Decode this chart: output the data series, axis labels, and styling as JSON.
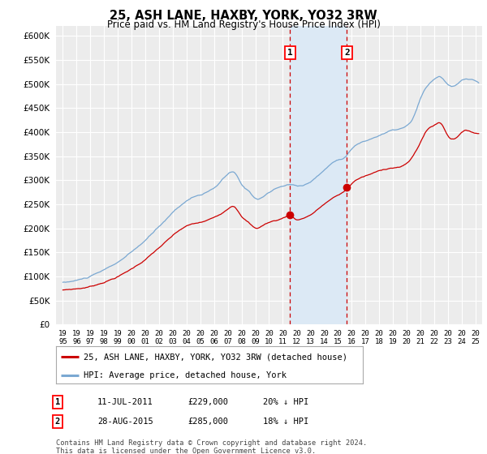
{
  "title": "25, ASH LANE, HAXBY, YORK, YO32 3RW",
  "subtitle": "Price paid vs. HM Land Registry's House Price Index (HPI)",
  "ylim": [
    0,
    620000
  ],
  "yticks": [
    0,
    50000,
    100000,
    150000,
    200000,
    250000,
    300000,
    350000,
    400000,
    450000,
    500000,
    550000,
    600000
  ],
  "legend_label_red": "25, ASH LANE, HAXBY, YORK, YO32 3RW (detached house)",
  "legend_label_blue": "HPI: Average price, detached house, York",
  "transaction1_date": "11-JUL-2011",
  "transaction1_price": "£229,000",
  "transaction1_hpi": "20% ↓ HPI",
  "transaction1_year": 2011.53,
  "transaction2_date": "28-AUG-2015",
  "transaction2_price": "£285,000",
  "transaction2_hpi": "18% ↓ HPI",
  "transaction2_year": 2015.66,
  "transaction1_value": 229000,
  "transaction2_value": 285000,
  "footnote": "Contains HM Land Registry data © Crown copyright and database right 2024.\nThis data is licensed under the Open Government Licence v3.0.",
  "background_color": "#ffffff",
  "plot_bg_color": "#ececec",
  "highlight_bg": "#dce9f5",
  "red_color": "#cc0000",
  "blue_color": "#7aa8d2",
  "grid_color": "#ffffff",
  "dashed_color": "#cc0000",
  "xlim_left": 1995.0,
  "xlim_right": 2025.5
}
